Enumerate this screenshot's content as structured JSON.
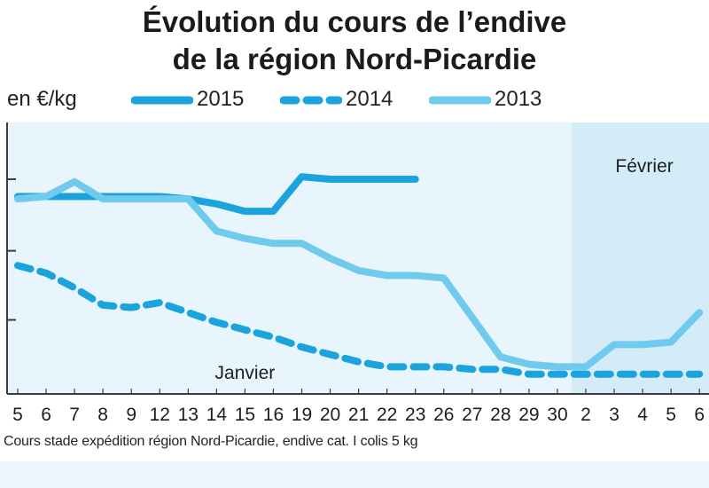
{
  "chart_data": {
    "type": "line",
    "title": [
      "Évolution du cours de l’endive",
      "de la région Nord-Picardie"
    ],
    "ylabel": "en €/kg",
    "categories": [
      "5",
      "6",
      "7",
      "8",
      "9",
      "12",
      "13",
      "14",
      "15",
      "16",
      "19",
      "20",
      "21",
      "22",
      "23",
      "26",
      "27",
      "28",
      "29",
      "30",
      "2",
      "3",
      "4",
      "5",
      "6"
    ],
    "period_labels": [
      {
        "text": "Janvier",
        "category_index": 8
      },
      {
        "text": "Février",
        "category_index": 22
      }
    ],
    "shaded_from_index": 20,
    "series": [
      {
        "name": "2015",
        "style": "solid",
        "color": "#1aa3dc",
        "values": [
          1.8,
          1.8,
          1.8,
          1.8,
          1.8,
          1.8,
          1.79,
          1.77,
          1.74,
          1.74,
          1.88,
          1.87,
          1.87,
          1.87,
          1.87,
          null,
          null,
          null,
          null,
          null,
          null,
          null,
          null,
          null,
          null
        ]
      },
      {
        "name": "2014",
        "style": "dashed",
        "color": "#1aa3dc",
        "values": [
          1.52,
          1.49,
          1.43,
          1.36,
          1.35,
          1.37,
          1.33,
          1.29,
          1.26,
          1.23,
          1.19,
          1.16,
          1.13,
          1.11,
          1.11,
          1.11,
          1.1,
          1.1,
          1.08,
          1.08,
          1.08,
          1.08,
          1.08,
          1.08,
          1.08
        ]
      },
      {
        "name": "2013",
        "style": "solid",
        "color": "#6fcaee",
        "values": [
          1.79,
          1.8,
          1.86,
          1.79,
          1.79,
          1.79,
          1.79,
          1.66,
          1.63,
          1.61,
          1.61,
          1.55,
          1.5,
          1.48,
          1.48,
          1.47,
          1.31,
          1.15,
          1.12,
          1.11,
          1.11,
          1.2,
          1.2,
          1.21,
          1.33
        ]
      }
    ],
    "ylim": [
      1.0,
      2.1
    ],
    "yticks": [
      1.3,
      1.58,
      1.87
    ],
    "caption": "Cours stade expédition région Nord-Picardie, endive cat. I colis 5 kg"
  },
  "colors": {
    "plot_bg": "#e9f5fc",
    "shaded_bg": "#d4ecf8",
    "axis": "#3c3c3c",
    "page_band": "#eef6fb"
  }
}
